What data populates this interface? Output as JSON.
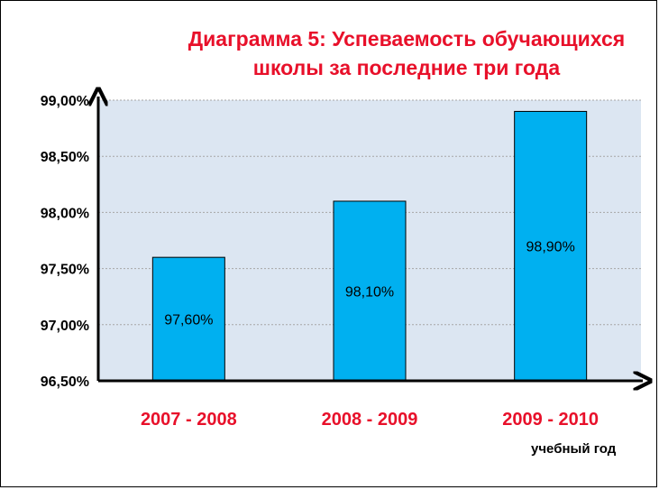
{
  "chart_data": {
    "type": "bar",
    "title": "Диаграмма 5: Успеваемость обучающихся школы за последние три года",
    "title_lines": [
      "Диаграмма 5: Успеваемость обучающихся",
      "школы за последние три года"
    ],
    "categories": [
      "2007 - 2008",
      "2008 - 2009",
      "2009 - 2010"
    ],
    "values": [
      97.6,
      98.1,
      98.9
    ],
    "data_labels": [
      "97,60%",
      "98,10%",
      "98,90%"
    ],
    "xlabel": "учебный год",
    "ylabel": "",
    "ylim": [
      96.5,
      99.0
    ],
    "y_ticks": [
      96.5,
      97.0,
      97.5,
      98.0,
      98.5,
      99.0
    ],
    "y_tick_labels": [
      "96,50%",
      "97,00%",
      "97,50%",
      "98,00%",
      "98,50%",
      "99,00%"
    ],
    "grid": true,
    "legend": "none",
    "colors": {
      "bar": "#00b0f0",
      "plot_bg": "#dce6f2",
      "title": "#e8102a",
      "category_labels": "#e8102a",
      "gridline": "#a6a6a6"
    }
  }
}
